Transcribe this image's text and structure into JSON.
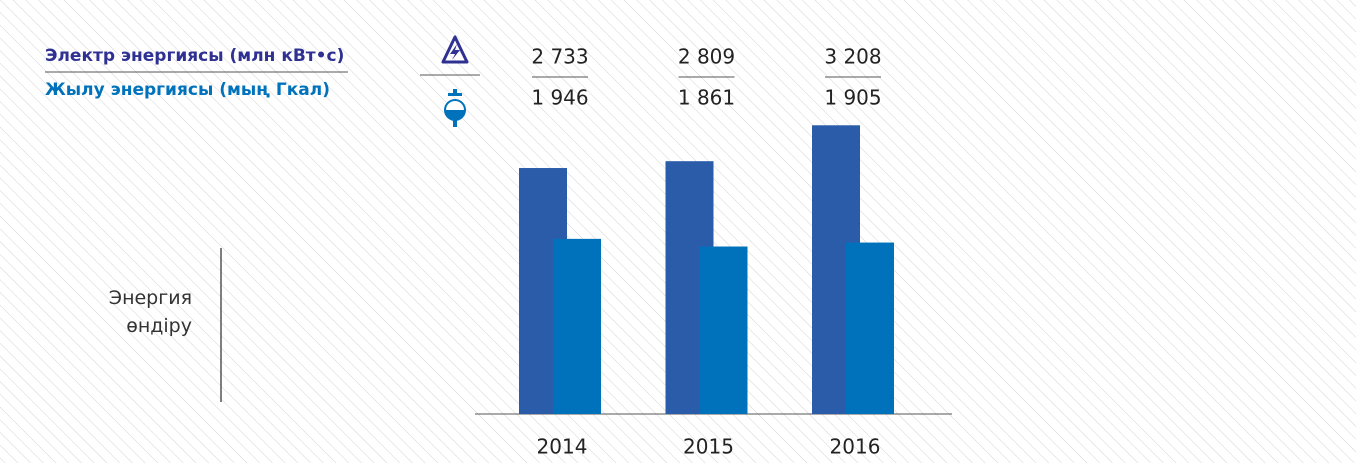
{
  "chart_data": {
    "type": "bar",
    "categories": [
      "2014",
      "2015",
      "2016"
    ],
    "series": [
      {
        "name": "Электр энергиясы (млн кВт•с)",
        "color": "#2a5caa",
        "values": [
          2733,
          2809,
          3208
        ],
        "value_labels": [
          "2 733",
          "2 809",
          "3 208"
        ]
      },
      {
        "name": "Жылу энергиясы (мың Гкал)",
        "color": "#0072bc",
        "values": [
          1946,
          1861,
          1905
        ],
        "value_labels": [
          "1 946",
          "1 861",
          "1 905"
        ]
      }
    ],
    "legend_colors": [
      "#2e3192",
      "#0072bc"
    ],
    "y_label": "Энергия өндіру",
    "ylim": [
      0,
      3500
    ]
  }
}
